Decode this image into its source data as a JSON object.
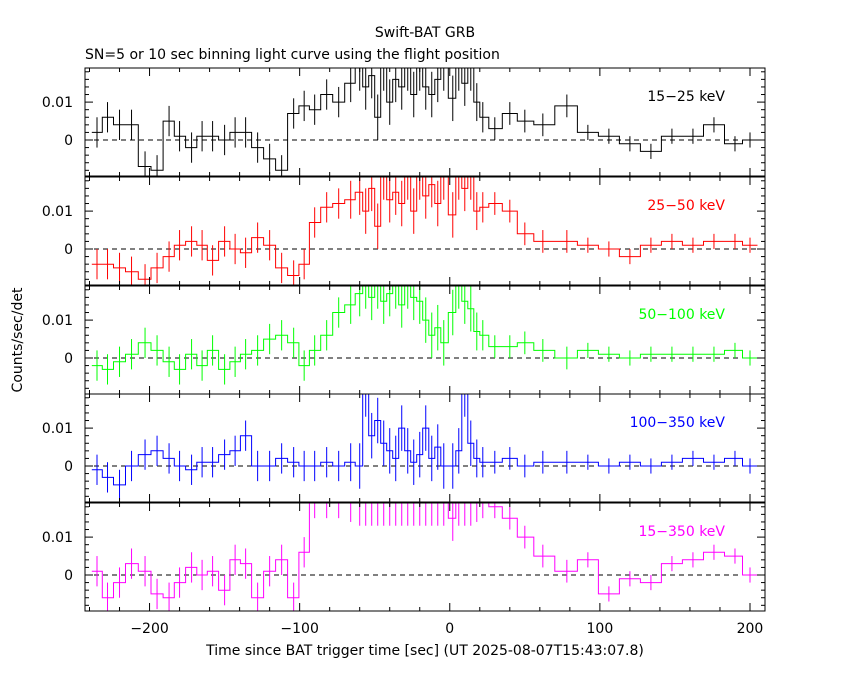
{
  "title": "Swift-BAT GRB",
  "subtitle": "SN=5 or 10 sec binning light curve using the flight position",
  "xlabel": "Time since BAT trigger time [sec] (UT 2025-08-07T15:43:07.8)",
  "ylabel": "Counts/sec/det",
  "colors": {
    "axis": "#000000",
    "black": "#000000",
    "red": "#ff0000",
    "green": "#00ff00",
    "blue": "#0000ff",
    "magenta": "#ff00ff"
  },
  "chart_data": {
    "type": "line",
    "plot_style": "step with error bars",
    "xlim": [
      -243,
      210
    ],
    "ylim": [
      -0.0095,
      0.019
    ],
    "xticks": [
      -200,
      -100,
      0,
      100,
      200
    ],
    "xtick_labels": [
      "−200",
      "−100",
      "0",
      "100",
      "200"
    ],
    "yticks": [
      0,
      0.01
    ],
    "ytick_labels": [
      "0",
      "0.01"
    ],
    "reference_line": {
      "y": 0,
      "style": "dashed"
    },
    "panels": [
      {
        "name": "15−25 keV",
        "color": "#000000",
        "x": [
          -235,
          -228,
          -220,
          -212,
          -203,
          -195,
          -187,
          -180,
          -172,
          -165,
          -158,
          -150,
          -143,
          -136,
          -128,
          -120,
          -112,
          -104,
          -97,
          -90,
          -82,
          -74,
          -66,
          -60,
          -56,
          -52,
          -48,
          -44,
          -40,
          -36,
          -32,
          -28,
          -24,
          -20,
          -16,
          -12,
          -8,
          -4,
          2,
          6,
          10,
          14,
          18,
          22,
          30,
          40,
          50,
          62,
          78,
          92,
          106,
          120,
          134,
          148,
          162,
          176,
          190,
          200
        ],
        "y": [
          0.002,
          0.006,
          0.004,
          0.004,
          -0.007,
          -0.008,
          0.005,
          0.001,
          -0.002,
          0.001,
          0.001,
          0.0,
          0.002,
          0.002,
          -0.002,
          -0.005,
          -0.008,
          0.007,
          0.009,
          0.008,
          0.012,
          0.01,
          0.015,
          0.019,
          0.014,
          0.017,
          0.006,
          0.019,
          0.01,
          0.016,
          0.014,
          0.019,
          0.012,
          0.019,
          0.014,
          0.012,
          0.016,
          0.019,
          0.011,
          0.019,
          0.015,
          0.019,
          0.01,
          0.006,
          0.003,
          0.007,
          0.005,
          0.004,
          0.009,
          0.002,
          0.001,
          -0.001,
          -0.003,
          0.001,
          0.001,
          0.004,
          -0.001,
          0.0
        ],
        "err": [
          0.004,
          0.004,
          0.004,
          0.004,
          0.004,
          0.004,
          0.004,
          0.004,
          0.004,
          0.004,
          0.004,
          0.004,
          0.004,
          0.004,
          0.004,
          0.004,
          0.004,
          0.004,
          0.004,
          0.004,
          0.004,
          0.004,
          0.005,
          0.006,
          0.006,
          0.006,
          0.006,
          0.006,
          0.006,
          0.006,
          0.006,
          0.006,
          0.006,
          0.006,
          0.006,
          0.006,
          0.006,
          0.006,
          0.006,
          0.006,
          0.006,
          0.006,
          0.005,
          0.004,
          0.003,
          0.003,
          0.003,
          0.003,
          0.003,
          0.002,
          0.002,
          0.002,
          0.002,
          0.002,
          0.002,
          0.002,
          0.002,
          0.002
        ]
      },
      {
        "name": "25−50 keV",
        "color": "#ff0000",
        "x": [
          -235,
          -228,
          -220,
          -212,
          -203,
          -195,
          -187,
          -180,
          -172,
          -165,
          -158,
          -150,
          -143,
          -136,
          -128,
          -120,
          -112,
          -104,
          -97,
          -90,
          -82,
          -74,
          -66,
          -60,
          -56,
          -52,
          -48,
          -44,
          -40,
          -36,
          -32,
          -28,
          -24,
          -20,
          -16,
          -12,
          -8,
          -4,
          2,
          6,
          10,
          14,
          18,
          22,
          30,
          40,
          50,
          62,
          78,
          92,
          106,
          120,
          134,
          148,
          162,
          176,
          190,
          200
        ],
        "y": [
          -0.004,
          -0.004,
          -0.005,
          -0.006,
          -0.008,
          -0.005,
          -0.002,
          0.001,
          0.002,
          0.001,
          -0.003,
          0.002,
          0.0,
          -0.001,
          0.003,
          0.001,
          -0.005,
          -0.007,
          -0.004,
          0.007,
          0.011,
          0.012,
          0.013,
          0.015,
          0.01,
          0.016,
          0.006,
          0.019,
          0.013,
          0.015,
          0.012,
          0.019,
          0.01,
          0.019,
          0.014,
          0.017,
          0.012,
          0.019,
          0.009,
          0.019,
          0.016,
          0.019,
          0.01,
          0.011,
          0.012,
          0.01,
          0.004,
          0.002,
          0.002,
          0.001,
          0.0,
          -0.002,
          0.001,
          0.002,
          0.001,
          0.002,
          0.002,
          0.001
        ],
        "err": [
          0.004,
          0.004,
          0.004,
          0.004,
          0.004,
          0.004,
          0.004,
          0.004,
          0.004,
          0.004,
          0.004,
          0.004,
          0.004,
          0.004,
          0.004,
          0.004,
          0.004,
          0.004,
          0.004,
          0.004,
          0.004,
          0.004,
          0.005,
          0.006,
          0.006,
          0.006,
          0.006,
          0.006,
          0.006,
          0.006,
          0.006,
          0.006,
          0.006,
          0.006,
          0.006,
          0.006,
          0.006,
          0.006,
          0.006,
          0.006,
          0.006,
          0.006,
          0.005,
          0.004,
          0.003,
          0.003,
          0.003,
          0.003,
          0.003,
          0.002,
          0.002,
          0.002,
          0.002,
          0.002,
          0.002,
          0.002,
          0.002,
          0.002
        ]
      },
      {
        "name": "50−100 keV",
        "color": "#00ff00",
        "x": [
          -235,
          -228,
          -220,
          -212,
          -203,
          -195,
          -187,
          -180,
          -172,
          -165,
          -158,
          -150,
          -143,
          -136,
          -128,
          -120,
          -112,
          -104,
          -97,
          -90,
          -82,
          -74,
          -66,
          -60,
          -56,
          -52,
          -48,
          -44,
          -40,
          -36,
          -32,
          -28,
          -24,
          -20,
          -16,
          -12,
          -8,
          -4,
          2,
          6,
          10,
          14,
          18,
          22,
          30,
          40,
          50,
          62,
          78,
          92,
          106,
          120,
          134,
          148,
          162,
          176,
          190,
          200
        ],
        "y": [
          -0.002,
          -0.003,
          -0.001,
          0.001,
          0.004,
          0.002,
          -0.001,
          -0.003,
          0.001,
          -0.002,
          0.002,
          -0.003,
          -0.001,
          0.001,
          0.002,
          0.005,
          0.006,
          0.004,
          -0.002,
          0.002,
          0.006,
          0.012,
          0.014,
          0.017,
          0.019,
          0.016,
          0.019,
          0.015,
          0.017,
          0.019,
          0.014,
          0.019,
          0.016,
          0.015,
          0.01,
          0.006,
          0.008,
          0.004,
          0.012,
          0.019,
          0.015,
          0.013,
          0.007,
          0.006,
          0.003,
          0.003,
          0.004,
          0.002,
          0.0,
          0.002,
          0.001,
          0.0,
          0.001,
          0.001,
          0.001,
          0.001,
          0.002,
          0.0
        ],
        "err": [
          0.004,
          0.004,
          0.004,
          0.004,
          0.004,
          0.004,
          0.004,
          0.004,
          0.004,
          0.004,
          0.004,
          0.004,
          0.004,
          0.004,
          0.004,
          0.004,
          0.004,
          0.004,
          0.004,
          0.004,
          0.004,
          0.004,
          0.005,
          0.006,
          0.006,
          0.006,
          0.006,
          0.006,
          0.006,
          0.006,
          0.006,
          0.006,
          0.006,
          0.006,
          0.006,
          0.006,
          0.006,
          0.006,
          0.006,
          0.006,
          0.006,
          0.006,
          0.005,
          0.004,
          0.003,
          0.003,
          0.003,
          0.003,
          0.003,
          0.002,
          0.002,
          0.002,
          0.002,
          0.002,
          0.002,
          0.002,
          0.002,
          0.002
        ]
      },
      {
        "name": "100−350 keV",
        "color": "#0000ff",
        "x": [
          -235,
          -228,
          -220,
          -212,
          -203,
          -195,
          -187,
          -180,
          -172,
          -165,
          -158,
          -150,
          -143,
          -136,
          -128,
          -120,
          -112,
          -104,
          -97,
          -90,
          -82,
          -74,
          -66,
          -60,
          -56,
          -52,
          -48,
          -44,
          -40,
          -36,
          -32,
          -28,
          -24,
          -20,
          -16,
          -12,
          -8,
          -4,
          2,
          6,
          10,
          14,
          18,
          22,
          30,
          40,
          50,
          62,
          78,
          92,
          106,
          120,
          134,
          148,
          162,
          176,
          190,
          200
        ],
        "y": [
          -0.001,
          -0.003,
          -0.005,
          0.0,
          0.003,
          0.004,
          0.002,
          0.0,
          -0.001,
          0.001,
          0.001,
          0.003,
          0.004,
          0.008,
          0.0,
          0.0,
          0.002,
          0.001,
          0.0,
          0.0,
          0.001,
          0.0,
          0.001,
          0.0,
          0.019,
          0.008,
          0.012,
          0.006,
          0.004,
          0.002,
          0.01,
          0.004,
          0.001,
          0.003,
          0.01,
          0.002,
          0.005,
          0.0,
          0.0,
          0.004,
          0.019,
          0.006,
          0.002,
          0.001,
          0.001,
          0.002,
          0.0,
          0.001,
          0.001,
          0.001,
          0.0,
          0.001,
          0.0,
          0.001,
          0.002,
          0.001,
          0.002,
          0.0
        ],
        "err": [
          0.004,
          0.004,
          0.004,
          0.004,
          0.004,
          0.004,
          0.004,
          0.004,
          0.004,
          0.004,
          0.004,
          0.004,
          0.004,
          0.004,
          0.004,
          0.004,
          0.004,
          0.004,
          0.004,
          0.004,
          0.004,
          0.004,
          0.005,
          0.006,
          0.006,
          0.006,
          0.006,
          0.006,
          0.006,
          0.006,
          0.006,
          0.006,
          0.006,
          0.006,
          0.006,
          0.006,
          0.006,
          0.006,
          0.006,
          0.006,
          0.006,
          0.006,
          0.005,
          0.004,
          0.003,
          0.003,
          0.003,
          0.003,
          0.003,
          0.002,
          0.002,
          0.002,
          0.002,
          0.002,
          0.002,
          0.002,
          0.002,
          0.002
        ]
      },
      {
        "name": "15−350 keV",
        "color": "#ff00ff",
        "x": [
          -235,
          -228,
          -220,
          -212,
          -203,
          -195,
          -187,
          -180,
          -172,
          -165,
          -158,
          -150,
          -143,
          -136,
          -128,
          -120,
          -112,
          -104,
          -97,
          -90,
          -82,
          -74,
          -66,
          -60,
          -56,
          -52,
          -48,
          -44,
          -40,
          -36,
          -32,
          -28,
          -24,
          -20,
          -16,
          -12,
          -8,
          -4,
          2,
          6,
          10,
          14,
          18,
          22,
          30,
          40,
          50,
          62,
          78,
          92,
          106,
          120,
          134,
          148,
          162,
          176,
          190,
          200
        ],
        "y": [
          0.001,
          -0.006,
          -0.002,
          0.003,
          0.001,
          -0.005,
          -0.006,
          -0.002,
          0.002,
          0.0,
          0.001,
          -0.004,
          0.004,
          0.003,
          -0.006,
          0.001,
          0.004,
          -0.006,
          0.006,
          0.019,
          0.019,
          0.019,
          0.019,
          0.019,
          0.019,
          0.019,
          0.019,
          0.019,
          0.019,
          0.019,
          0.019,
          0.019,
          0.019,
          0.019,
          0.019,
          0.019,
          0.019,
          0.019,
          0.015,
          0.019,
          0.019,
          0.019,
          0.019,
          0.019,
          0.018,
          0.015,
          0.01,
          0.005,
          0.001,
          0.004,
          -0.005,
          -0.001,
          -0.002,
          0.003,
          0.004,
          0.006,
          0.005,
          0.0
        ],
        "err": [
          0.004,
          0.004,
          0.004,
          0.004,
          0.004,
          0.004,
          0.004,
          0.004,
          0.004,
          0.004,
          0.004,
          0.004,
          0.004,
          0.004,
          0.004,
          0.004,
          0.004,
          0.004,
          0.004,
          0.004,
          0.004,
          0.004,
          0.005,
          0.006,
          0.006,
          0.006,
          0.006,
          0.006,
          0.006,
          0.006,
          0.006,
          0.006,
          0.006,
          0.006,
          0.006,
          0.006,
          0.006,
          0.006,
          0.006,
          0.006,
          0.006,
          0.006,
          0.005,
          0.004,
          0.003,
          0.003,
          0.003,
          0.003,
          0.003,
          0.002,
          0.002,
          0.002,
          0.002,
          0.002,
          0.002,
          0.002,
          0.002,
          0.002
        ]
      }
    ]
  }
}
